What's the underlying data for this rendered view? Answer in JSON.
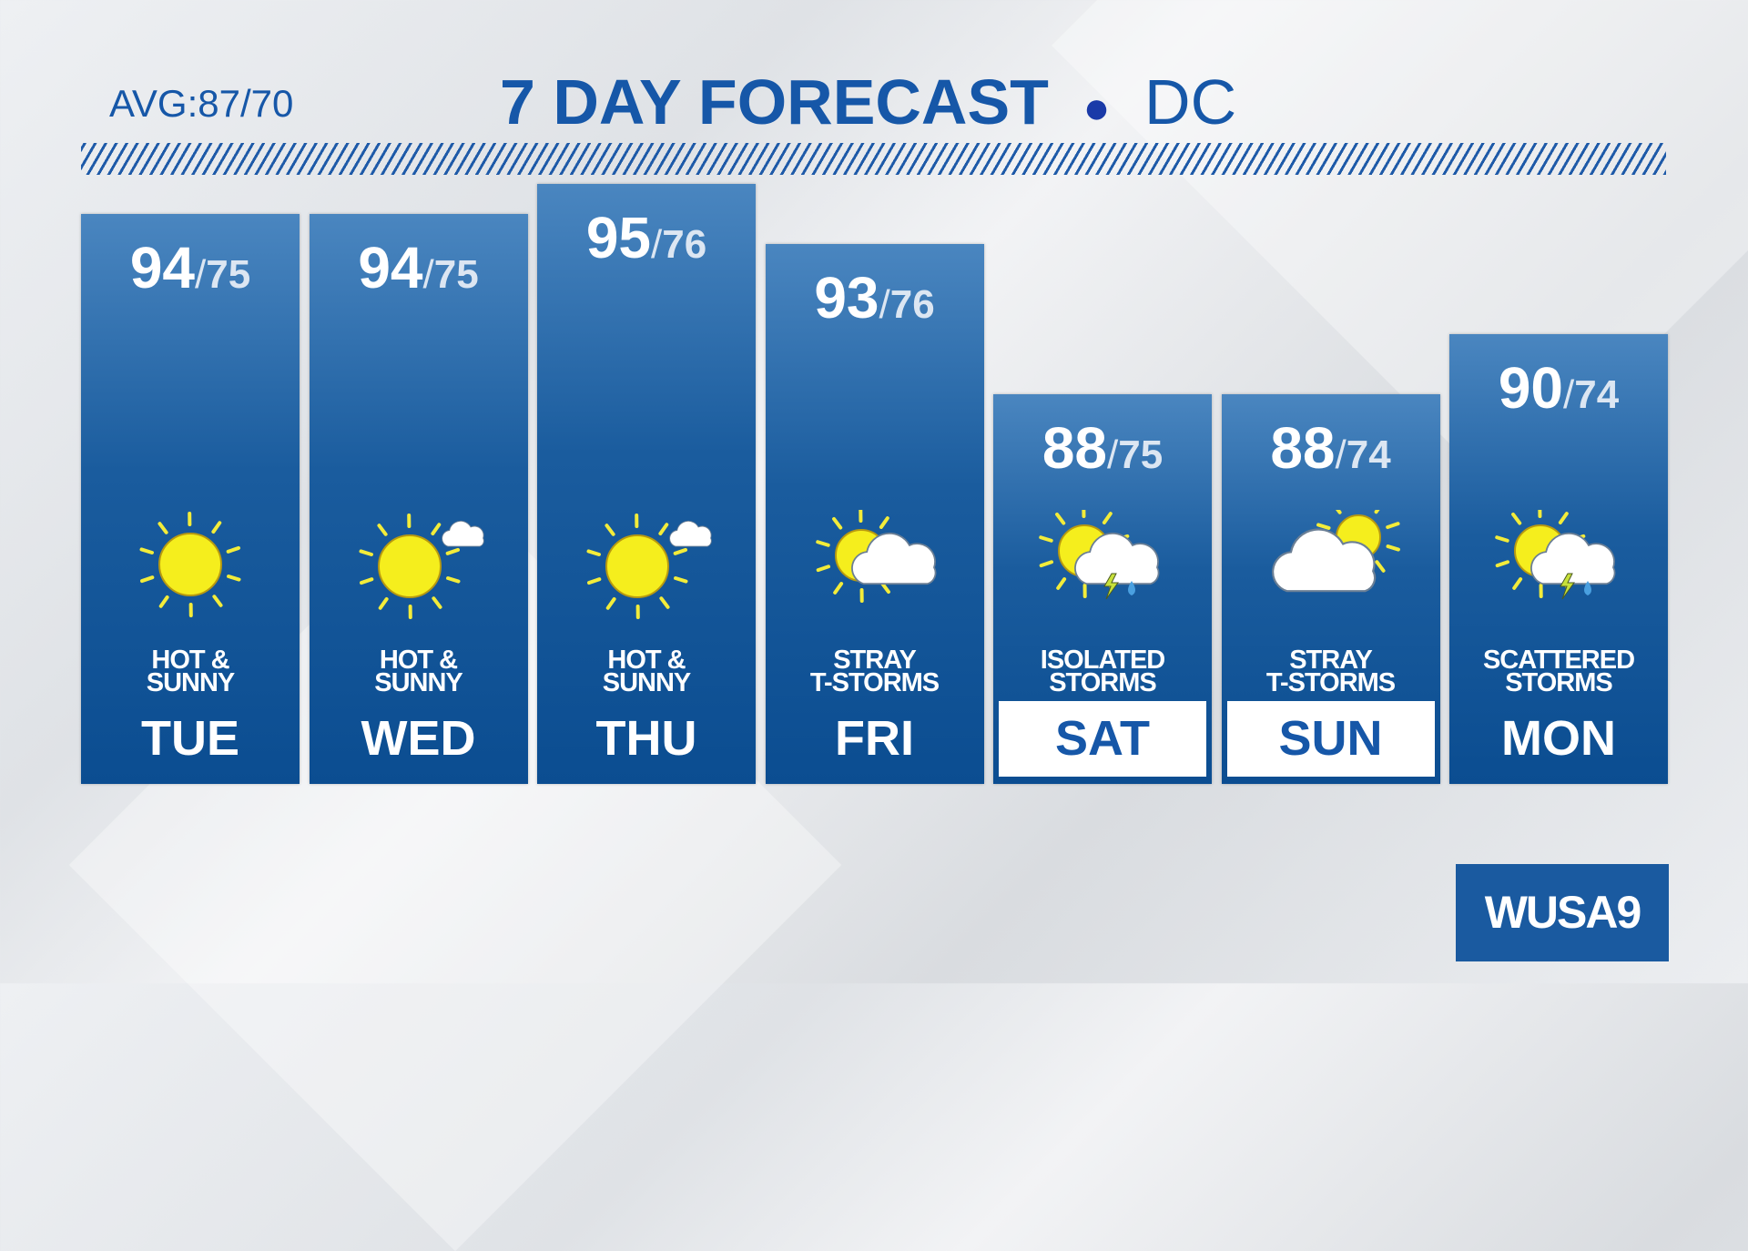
{
  "header": {
    "average": "AVG:87/70",
    "title": "7 DAY FORECAST",
    "location": "DC"
  },
  "forecast": {
    "days": [
      {
        "day": "TUE",
        "high": 94,
        "low": 75,
        "condition": [
          "HOT &",
          "SUNNY"
        ],
        "icon": "sun",
        "label_style": "plain"
      },
      {
        "day": "WED",
        "high": 94,
        "low": 75,
        "condition": [
          "HOT &",
          "SUNNY"
        ],
        "icon": "sun-small-cloud",
        "label_style": "plain"
      },
      {
        "day": "THU",
        "high": 95,
        "low": 76,
        "condition": [
          "HOT &",
          "SUNNY"
        ],
        "icon": "sun-small-cloud",
        "label_style": "plain"
      },
      {
        "day": "FRI",
        "high": 93,
        "low": 76,
        "condition": [
          "STRAY",
          "T-STORMS"
        ],
        "icon": "partly-cloudy",
        "label_style": "plain"
      },
      {
        "day": "SAT",
        "high": 88,
        "low": 75,
        "condition": [
          "ISOLATED",
          "STORMS"
        ],
        "icon": "storm",
        "label_style": "boxed"
      },
      {
        "day": "SUN",
        "high": 88,
        "low": 74,
        "condition": [
          "STRAY",
          "T-STORMS"
        ],
        "icon": "cloudy-sun",
        "label_style": "boxed"
      },
      {
        "day": "MON",
        "high": 90,
        "low": 74,
        "condition": [
          "SCATTERED",
          "STORMS"
        ],
        "icon": "storm",
        "label_style": "plain"
      }
    ]
  },
  "logo": {
    "text": "WUSA9"
  }
}
